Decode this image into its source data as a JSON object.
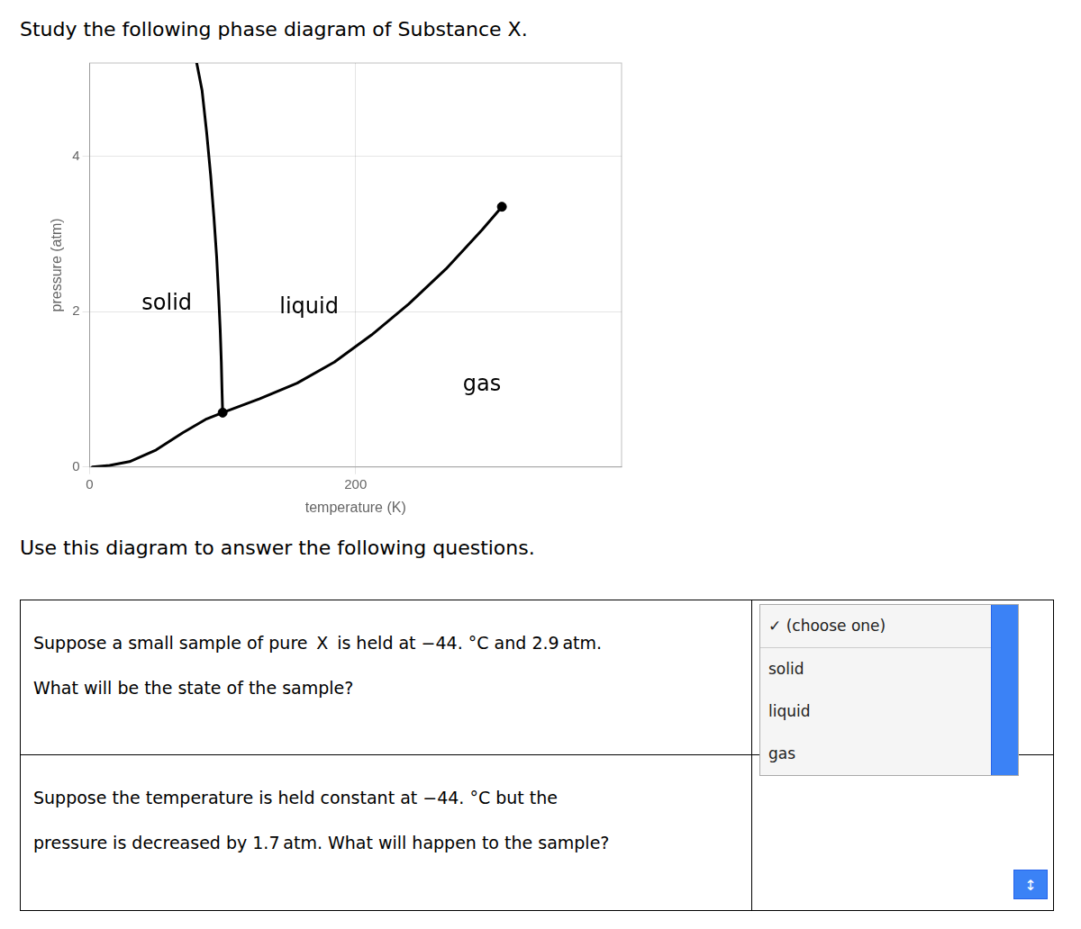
{
  "chart_data": {
    "type": "line",
    "title": "Study the following phase diagram of Substance X.",
    "xlabel": "temperature (K)",
    "ylabel": "pressure (atm)",
    "xlim": [
      0,
      400
    ],
    "ylim": [
      0,
      5.2
    ],
    "xticks": [
      0,
      200
    ],
    "yticks": [
      0,
      2,
      4
    ],
    "grid": true,
    "series": [
      {
        "type": "line",
        "color": "#000000",
        "x": [
          2,
          15,
          30,
          50,
          70,
          88,
          100
        ],
        "values": [
          0.0,
          0.02,
          0.07,
          0.22,
          0.44,
          0.62,
          0.7
        ]
      },
      {
        "type": "line",
        "color": "#000000",
        "x": [
          100,
          99.5,
          99.0,
          98.2,
          97.0,
          95.5,
          93.5,
          91.0,
          88.0,
          84.5,
          80.5
        ],
        "values": [
          0.7,
          1.0,
          1.35,
          1.75,
          2.2,
          2.7,
          3.2,
          3.75,
          4.3,
          4.85,
          5.2
        ]
      },
      {
        "type": "line",
        "color": "#000000",
        "x": [
          100,
          128,
          156,
          184,
          212,
          240,
          268,
          295,
          310
        ],
        "values": [
          0.7,
          0.88,
          1.08,
          1.35,
          1.7,
          2.1,
          2.55,
          3.05,
          3.35
        ]
      },
      {
        "type": "scatter",
        "marker": "circle",
        "color": "#000000",
        "x": [
          100
        ],
        "values": [
          0.7
        ]
      },
      {
        "type": "scatter",
        "marker": "circle",
        "color": "#000000",
        "x": [
          310
        ],
        "values": [
          3.35
        ]
      }
    ],
    "annotations": [
      {
        "text": "solid",
        "x": 58,
        "y": 2.1
      },
      {
        "text": "liquid",
        "x": 165,
        "y": 2.05
      },
      {
        "text": "gas",
        "x": 295,
        "y": 1.05
      }
    ],
    "intro": "Use this diagram to answer the following questions.",
    "questions": [
      [
        "Suppose a small sample of pure  X  is held at −44. °C and 2.9 atm.",
        "What will be the state of the sample?"
      ],
      [
        "Suppose the temperature is held constant at −44. °C but the",
        "pressure is decreased by 1.7 atm. What will happen to the sample?"
      ]
    ],
    "choices": [
      "✓ (choose one)",
      "solid",
      "liquid",
      "gas"
    ],
    "button": "↕"
  }
}
